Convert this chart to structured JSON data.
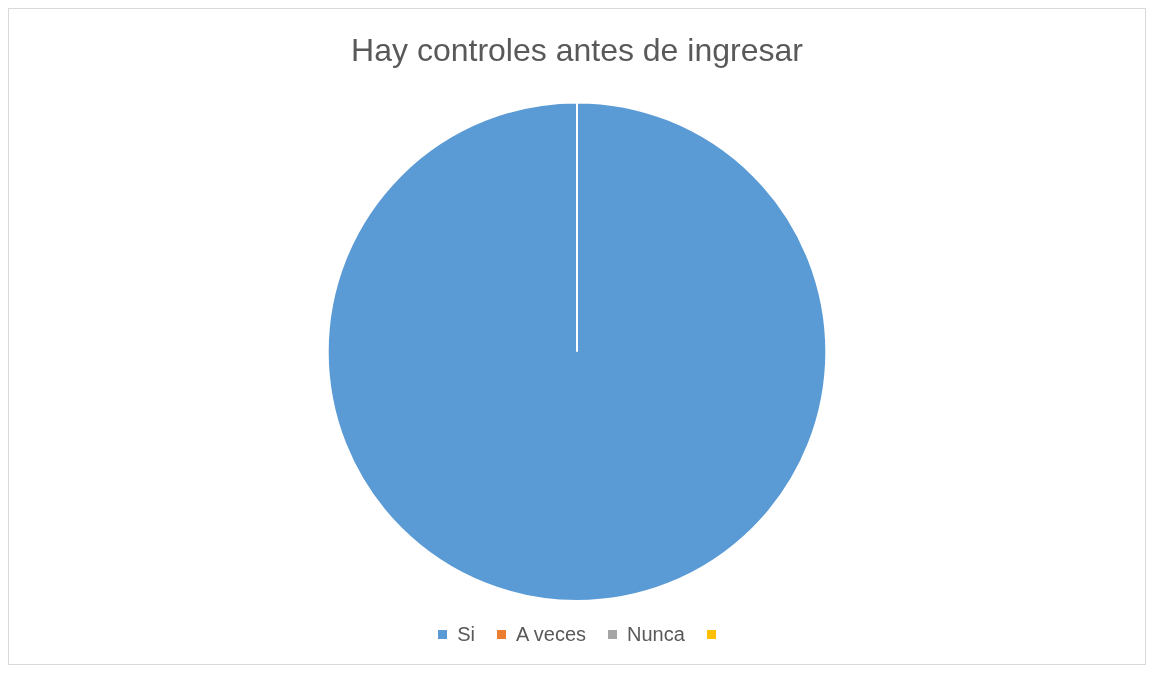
{
  "chart_data": {
    "type": "pie",
    "title": "Hay controles antes de ingresar",
    "categories": [
      "Si",
      "A veces",
      "Nunca",
      null
    ],
    "values": [
      100,
      0,
      0,
      0
    ],
    "colors": [
      "#5b9bd5",
      "#ed7d31",
      "#a5a5a5",
      "#ffc000"
    ],
    "legend": "bottom"
  }
}
